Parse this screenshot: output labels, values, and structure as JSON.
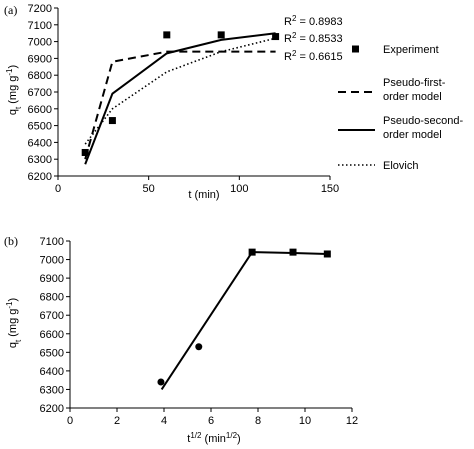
{
  "chart_data": [
    {
      "panel": "(a)",
      "type": "scatter",
      "xlabel": "t (min)",
      "ylabel_main": "q",
      "ylabel_sub": "t",
      "ylabel_rest": " (mg g",
      "ylabel_sup": "-1",
      "ylabel_end": ")",
      "xlim": [
        0,
        150
      ],
      "ylim": [
        6200,
        7200
      ],
      "xticks": [
        0,
        50,
        100,
        150
      ],
      "yticks": [
        6200,
        6300,
        6400,
        6500,
        6600,
        6700,
        6800,
        6900,
        7000,
        7100,
        7200
      ],
      "series": [
        {
          "name": "Experiment",
          "style": "markers-square",
          "x": [
            15,
            30,
            60,
            90,
            120
          ],
          "y": [
            6340,
            6530,
            7040,
            7040,
            7030
          ]
        },
        {
          "name": "Pseudo-first-order model",
          "style": "dashed",
          "x": [
            15,
            30,
            60,
            90,
            120
          ],
          "y": [
            6300,
            6880,
            6940,
            6940,
            6940
          ]
        },
        {
          "name": "Pseudo-second-order model",
          "style": "solid",
          "x": [
            15,
            30,
            60,
            90,
            120
          ],
          "y": [
            6270,
            6690,
            6930,
            7010,
            7050
          ]
        },
        {
          "name": "Elovich",
          "style": "dotted",
          "x": [
            15,
            30,
            60,
            90,
            120
          ],
          "y": [
            6390,
            6600,
            6820,
            6940,
            7020
          ]
        }
      ],
      "annotations": [
        {
          "pre": "R",
          "sup": "2",
          "post": " = 0.8983"
        },
        {
          "pre": "R",
          "sup": "2",
          "post": " = 0.8533"
        },
        {
          "pre": "R",
          "sup": "2",
          "post": " = 0.6615"
        }
      ],
      "legend_placement": "right",
      "legend": [
        {
          "lines": [
            "Experiment"
          ],
          "style": "markers-square"
        },
        {
          "lines": [
            "Pseudo-first-",
            "order model"
          ],
          "style": "dashed"
        },
        {
          "lines": [
            "Pseudo-second-",
            "order model"
          ],
          "style": "solid"
        },
        {
          "lines": [
            "Elovich"
          ],
          "style": "dotted"
        }
      ],
      "grid": false
    },
    {
      "panel": "(b)",
      "type": "scatter",
      "xlabel_main": "t",
      "xlabel_sup": "1/2",
      "xlabel_rest": " (min",
      "xlabel_sup2": "1/2",
      "xlabel_end": ")",
      "ylabel_main": "q",
      "ylabel_sub": "t",
      "ylabel_rest": " (mg g",
      "ylabel_sup": "-1",
      "ylabel_end": ")",
      "xlim": [
        0,
        12
      ],
      "ylim": [
        6200,
        7100
      ],
      "xticks": [
        0,
        2,
        4,
        6,
        8,
        10,
        12
      ],
      "yticks": [
        6200,
        6300,
        6400,
        6500,
        6600,
        6700,
        6800,
        6900,
        7000,
        7100
      ],
      "series": [
        {
          "name": "circles",
          "style": "markers-circle",
          "x": [
            3.87,
            5.48
          ],
          "y": [
            6340,
            6530
          ]
        },
        {
          "name": "squares",
          "style": "markers-square",
          "x": [
            7.75,
            9.49,
            10.95
          ],
          "y": [
            7040,
            7040,
            7030
          ]
        },
        {
          "name": "fit-1",
          "style": "solid",
          "x": [
            3.9,
            7.75
          ],
          "y": [
            6300,
            7040
          ]
        },
        {
          "name": "fit-2",
          "style": "solid",
          "x": [
            7.75,
            9.49,
            10.95
          ],
          "y": [
            7040,
            7035,
            7030
          ]
        }
      ],
      "grid": false
    }
  ]
}
